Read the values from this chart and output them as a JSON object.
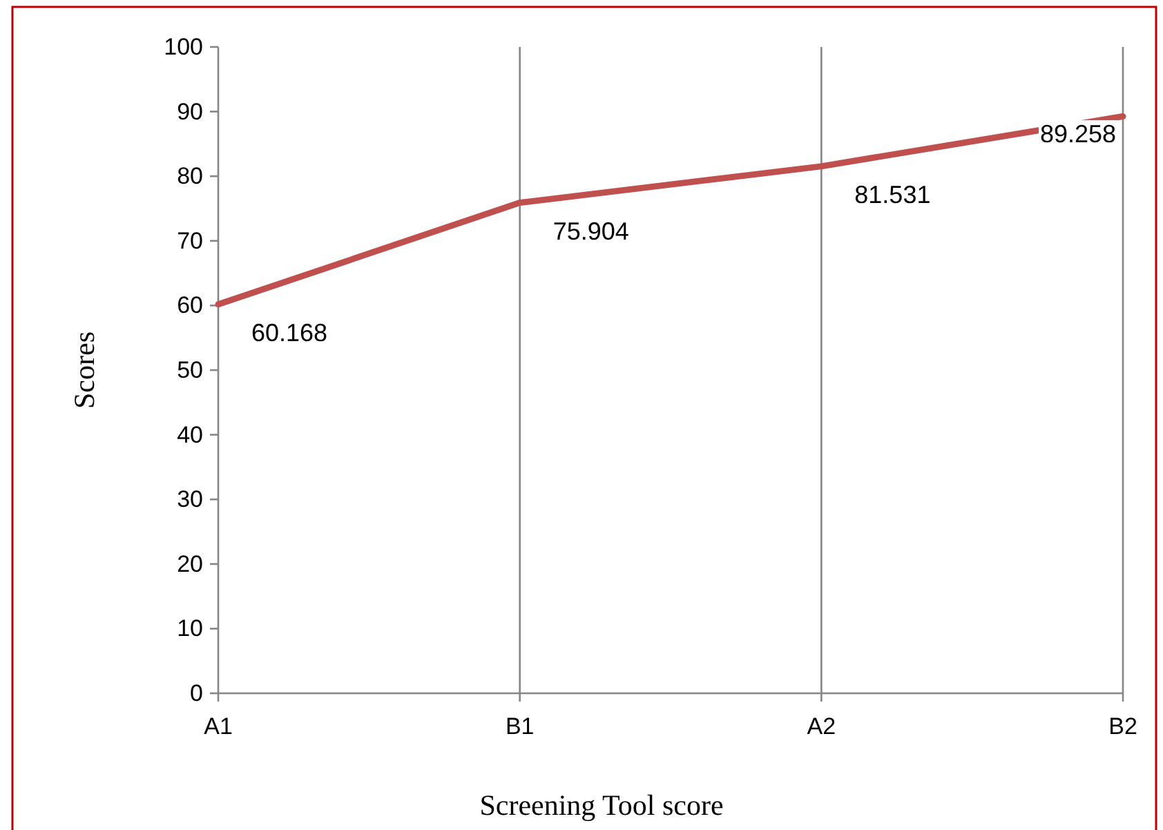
{
  "chart_data": {
    "type": "line",
    "xlabel": "Screening Tool score",
    "ylabel": "Scores",
    "categories": [
      "A1",
      "B1",
      "A2",
      "B2"
    ],
    "series": [
      {
        "color": "#c0504d",
        "values": [
          60.168,
          75.904,
          81.531,
          89.258
        ]
      }
    ],
    "ylim": [
      0,
      100
    ],
    "yticks": [
      0,
      10,
      20,
      30,
      40,
      50,
      60,
      70,
      80,
      90,
      100
    ],
    "grid": "x",
    "data_labels": true,
    "marker": "none",
    "line_style": "solid"
  }
}
